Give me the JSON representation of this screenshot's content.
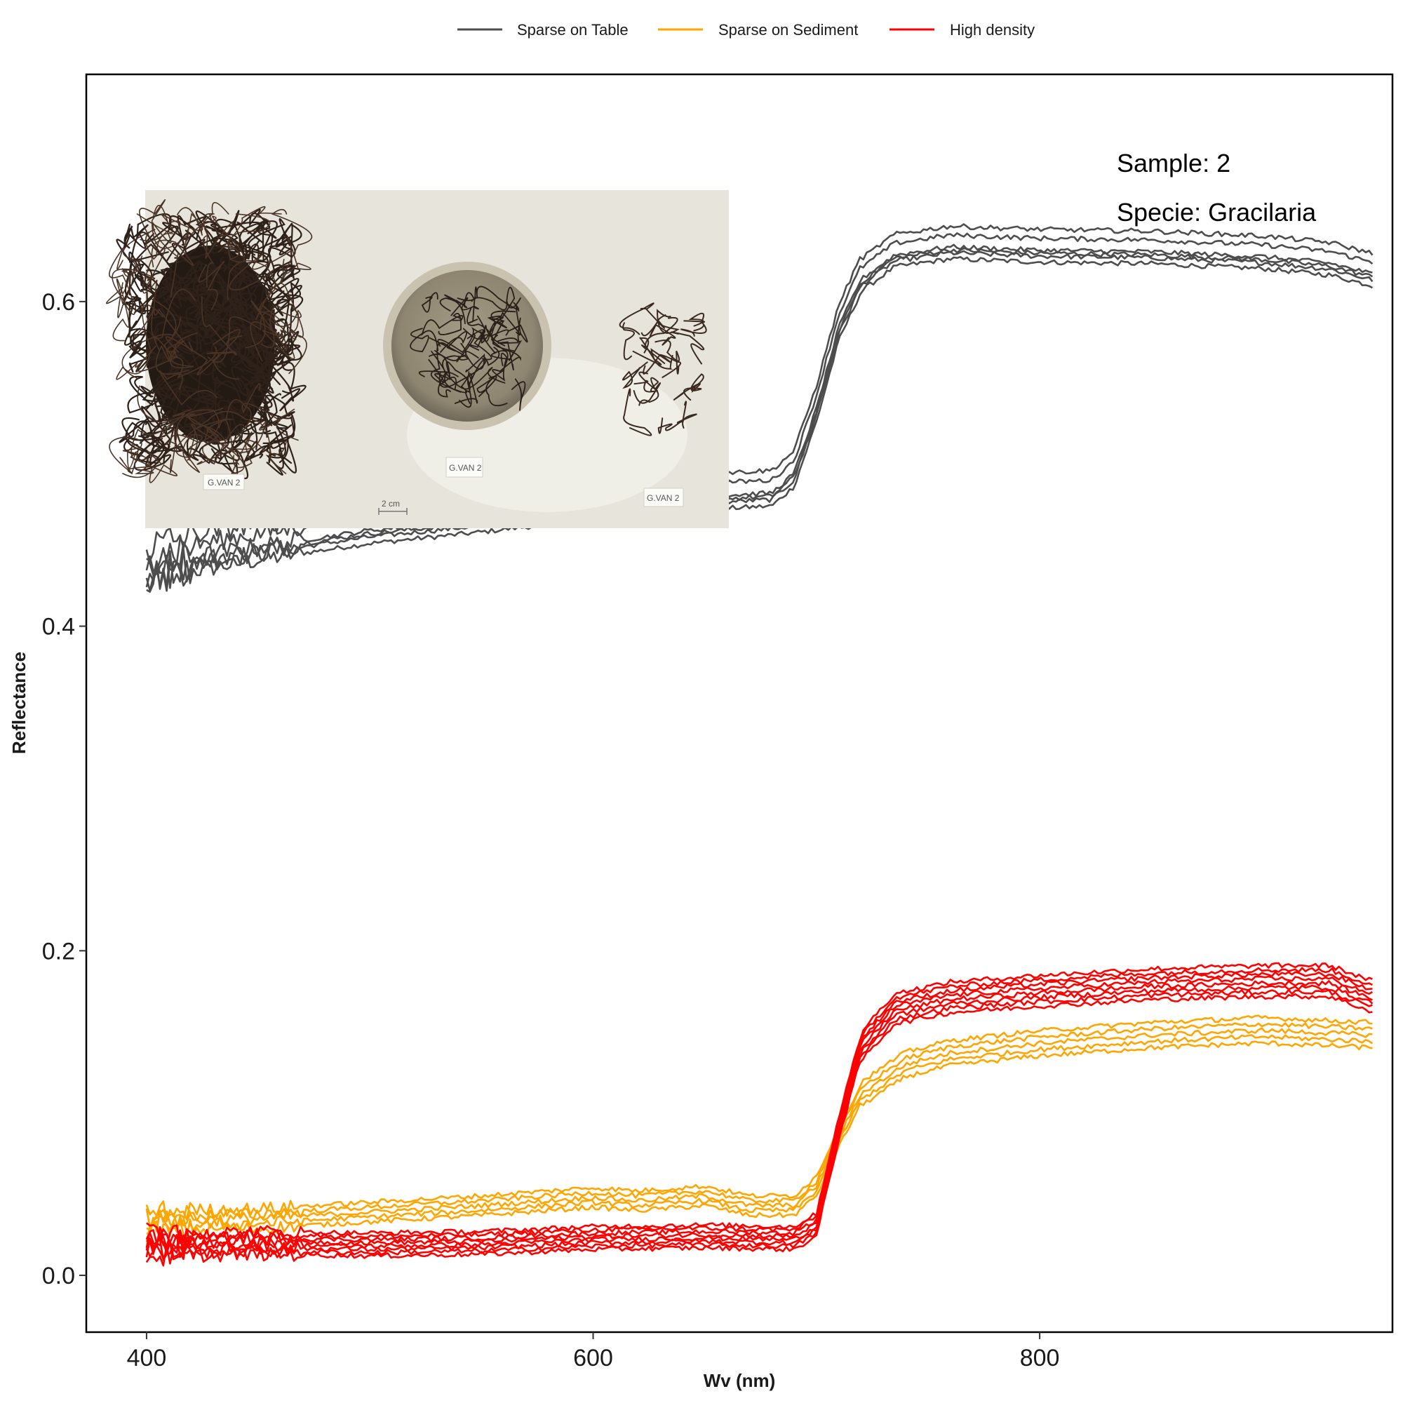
{
  "chart_data": {
    "type": "line",
    "title": "",
    "xlabel": "Wv (nm)",
    "ylabel": "Reflectance",
    "xlim": [
      373,
      958
    ],
    "ylim": [
      -0.035,
      0.74
    ],
    "x_ticks": [
      400,
      600,
      800
    ],
    "x_tick_labels": [
      "400",
      "600",
      "800"
    ],
    "y_ticks": [
      0.0,
      0.2,
      0.4,
      0.6
    ],
    "y_tick_labels": [
      "0.0",
      "0.2",
      "0.4",
      "0.6"
    ],
    "grid": false,
    "legend_position": "top",
    "x_range_nm": [
      400,
      950
    ],
    "annotations": [
      {
        "text": "Sample: 2"
      },
      {
        "text": "Specie: Gracilaria"
      }
    ],
    "series": [
      {
        "name": "Sparse on Table",
        "color": "#4d4d4d",
        "replicates": 6,
        "points": [
          [
            400,
            0.43
          ],
          [
            420,
            0.438
          ],
          [
            450,
            0.445
          ],
          [
            500,
            0.455
          ],
          [
            550,
            0.462
          ],
          [
            600,
            0.47
          ],
          [
            650,
            0.476
          ],
          [
            680,
            0.478
          ],
          [
            690,
            0.49
          ],
          [
            700,
            0.53
          ],
          [
            710,
            0.58
          ],
          [
            720,
            0.61
          ],
          [
            735,
            0.625
          ],
          [
            760,
            0.63
          ],
          [
            800,
            0.628
          ],
          [
            850,
            0.627
          ],
          [
            900,
            0.624
          ],
          [
            930,
            0.62
          ],
          [
            950,
            0.613
          ]
        ]
      },
      {
        "name": "Sparse on Sediment",
        "color": "#ffa500",
        "replicates": 5,
        "points": [
          [
            400,
            0.033
          ],
          [
            420,
            0.034
          ],
          [
            450,
            0.035
          ],
          [
            500,
            0.039
          ],
          [
            550,
            0.043
          ],
          [
            580,
            0.046
          ],
          [
            600,
            0.048
          ],
          [
            620,
            0.046
          ],
          [
            650,
            0.049
          ],
          [
            670,
            0.043
          ],
          [
            690,
            0.043
          ],
          [
            700,
            0.055
          ],
          [
            710,
            0.085
          ],
          [
            720,
            0.112
          ],
          [
            740,
            0.13
          ],
          [
            760,
            0.137
          ],
          [
            800,
            0.143
          ],
          [
            850,
            0.148
          ],
          [
            900,
            0.151
          ],
          [
            950,
            0.148
          ]
        ]
      },
      {
        "name": "High density",
        "color": "#ff0000",
        "replicates": 8,
        "points": [
          [
            400,
            0.018
          ],
          [
            420,
            0.018
          ],
          [
            450,
            0.019
          ],
          [
            500,
            0.018
          ],
          [
            550,
            0.019
          ],
          [
            600,
            0.022
          ],
          [
            650,
            0.023
          ],
          [
            690,
            0.022
          ],
          [
            700,
            0.03
          ],
          [
            710,
            0.09
          ],
          [
            720,
            0.14
          ],
          [
            735,
            0.163
          ],
          [
            760,
            0.17
          ],
          [
            800,
            0.174
          ],
          [
            850,
            0.178
          ],
          [
            900,
            0.18
          ],
          [
            930,
            0.18
          ],
          [
            950,
            0.17
          ]
        ]
      }
    ]
  },
  "inset_photo": {
    "labels": [
      "G.VAN 2",
      "G.VAN 2",
      "G.VAN 2"
    ],
    "scale_label": "2 cm"
  }
}
